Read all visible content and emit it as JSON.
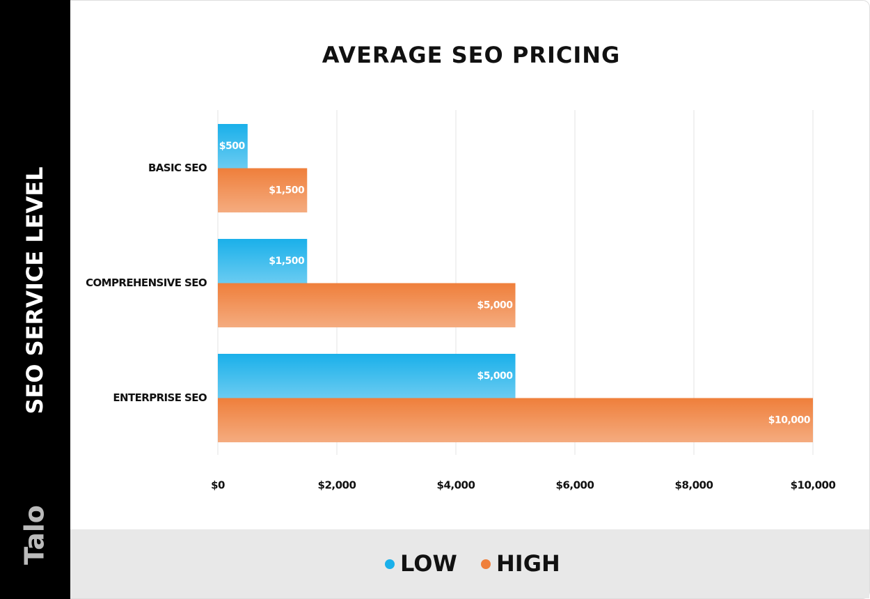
{
  "chart_data": {
    "type": "barh",
    "title": "AVERAGE SEO PRICING",
    "y_label": "SEO SERVICE LEVEL",
    "logo": "Talo",
    "categories": [
      "BASIC SEO",
      "COMPREHENSIVE SEO",
      "ENTERPRISE SEO"
    ],
    "series": [
      {
        "name": "LOW",
        "color": "#1ab0ea",
        "values": [
          500,
          1500,
          5000
        ],
        "value_labels": [
          "$500",
          "$1,500",
          "$5,000"
        ]
      },
      {
        "name": "HIGH",
        "color": "#ef7f3b",
        "values": [
          1500,
          5000,
          10000
        ],
        "value_labels": [
          "$1,500",
          "$5,000",
          "$10,000"
        ]
      }
    ],
    "xlim": [
      0,
      10000
    ],
    "xticks": [
      {
        "value": 0,
        "label": "$0"
      },
      {
        "value": 2000,
        "label": "$2,000"
      },
      {
        "value": 4000,
        "label": "$4,000"
      },
      {
        "value": 6000,
        "label": "$6,000"
      },
      {
        "value": 8000,
        "label": "$8,000"
      },
      {
        "value": 10000,
        "label": "$10,000"
      }
    ],
    "grid": true
  }
}
